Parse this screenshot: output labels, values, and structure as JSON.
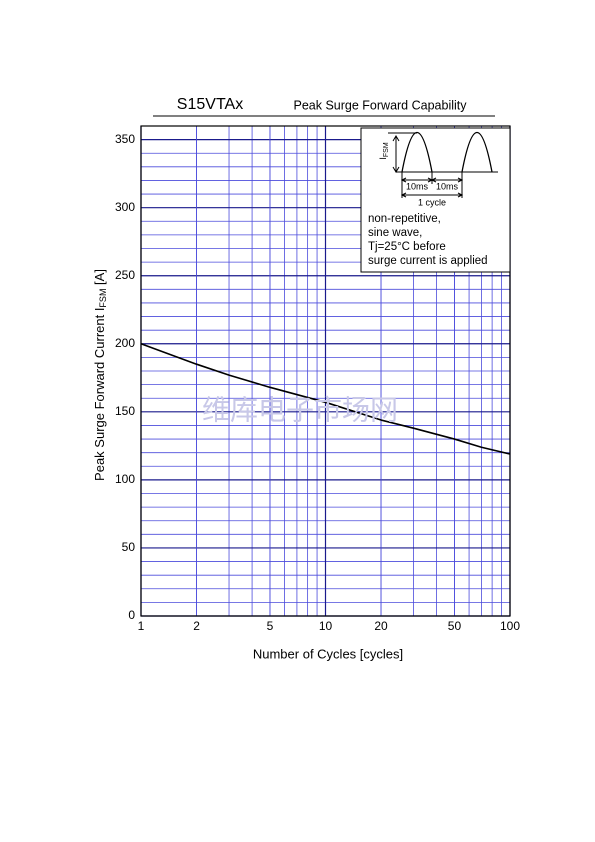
{
  "chart_data": {
    "type": "line",
    "title": "S15VTAx",
    "subtitle": "Peak Surge Forward Capability",
    "xlabel": "Number of Cycles  [cycles]",
    "ylabel": "Peak Surge Forward Current  I",
    "ylabel_sub": "FSM",
    "ylabel_unit": " [A]",
    "x": [
      1,
      2,
      3,
      5,
      10,
      20,
      30,
      50,
      70,
      100
    ],
    "series": [
      {
        "color": "#000000",
        "values": [
          200,
          185,
          177,
          168,
          157,
          144,
          138,
          130,
          124,
          119
        ]
      }
    ],
    "xscale": "log",
    "xlim": [
      1,
      100
    ],
    "xticks": [
      1,
      2,
      5,
      10,
      20,
      50,
      100
    ],
    "ylim": [
      0,
      360
    ],
    "yticks": [
      0,
      50,
      100,
      150,
      200,
      250,
      300,
      350
    ],
    "grid": true,
    "minor_per_major": 5,
    "grid_color": "#4b4bdc",
    "watermark": "维库电子市场网",
    "inset": {
      "label": "I",
      "label_sub": "FSM",
      "half1": "10ms",
      "half2": "10ms",
      "period": "1 cycle",
      "notes": [
        "non-repetitive,",
        "sine wave,",
        "Tj=25°C before",
        "surge current is applied"
      ]
    }
  }
}
